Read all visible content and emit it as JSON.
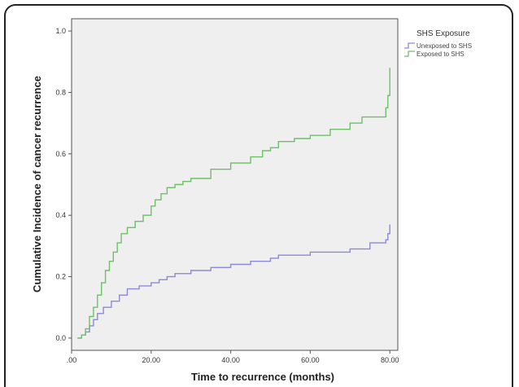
{
  "chart_data": {
    "type": "line",
    "step": true,
    "xlabel": "Time to recurrence (months)",
    "ylabel": "Cumulative Incidence of cancer recurrence",
    "xlim": [
      0,
      82
    ],
    "ylim": [
      -0.04,
      1.04
    ],
    "x_ticks": [
      0,
      20,
      40,
      60,
      80
    ],
    "x_tick_labels": [
      ".00",
      "20.00",
      "40.00",
      "60.00",
      "80.00"
    ],
    "y_ticks": [
      0.0,
      0.2,
      0.4,
      0.6,
      0.8,
      1.0
    ],
    "y_tick_labels": [
      "0.0",
      "0.2",
      "0.4",
      "0.6",
      "0.8",
      "1.0"
    ],
    "grid": false,
    "legend": {
      "title": "SHS Exposure",
      "position": "outside-right-top"
    },
    "series": [
      {
        "name": "Unexposed to SHS",
        "color": "#8c8ad6",
        "points": [
          [
            1.5,
            0.0
          ],
          [
            2.5,
            0.01
          ],
          [
            3.5,
            0.02
          ],
          [
            4.5,
            0.04
          ],
          [
            5.5,
            0.06
          ],
          [
            6.5,
            0.08
          ],
          [
            8,
            0.1
          ],
          [
            10,
            0.12
          ],
          [
            12,
            0.14
          ],
          [
            14,
            0.16
          ],
          [
            17,
            0.17
          ],
          [
            20,
            0.18
          ],
          [
            22,
            0.19
          ],
          [
            24,
            0.2
          ],
          [
            26,
            0.21
          ],
          [
            30,
            0.22
          ],
          [
            35,
            0.23
          ],
          [
            40,
            0.24
          ],
          [
            45,
            0.25
          ],
          [
            50,
            0.26
          ],
          [
            52,
            0.27
          ],
          [
            60,
            0.28
          ],
          [
            70,
            0.29
          ],
          [
            75,
            0.31
          ],
          [
            79,
            0.32
          ],
          [
            79.5,
            0.34
          ],
          [
            80,
            0.37
          ]
        ]
      },
      {
        "name": "Exposed to SHS",
        "color": "#6fbf6a",
        "points": [
          [
            1.5,
            0.0
          ],
          [
            2.5,
            0.01
          ],
          [
            3.5,
            0.03
          ],
          [
            4.5,
            0.07
          ],
          [
            5.5,
            0.1
          ],
          [
            6.5,
            0.14
          ],
          [
            7.5,
            0.18
          ],
          [
            8.5,
            0.22
          ],
          [
            9.5,
            0.25
          ],
          [
            10.5,
            0.28
          ],
          [
            11.5,
            0.31
          ],
          [
            12.5,
            0.34
          ],
          [
            14,
            0.36
          ],
          [
            16,
            0.38
          ],
          [
            18,
            0.4
          ],
          [
            20,
            0.43
          ],
          [
            21,
            0.45
          ],
          [
            22.5,
            0.47
          ],
          [
            24,
            0.49
          ],
          [
            26,
            0.5
          ],
          [
            28,
            0.51
          ],
          [
            30,
            0.52
          ],
          [
            35,
            0.55
          ],
          [
            40,
            0.57
          ],
          [
            45,
            0.59
          ],
          [
            48,
            0.61
          ],
          [
            50,
            0.62
          ],
          [
            52,
            0.64
          ],
          [
            56,
            0.65
          ],
          [
            60,
            0.66
          ],
          [
            65,
            0.68
          ],
          [
            70,
            0.7
          ],
          [
            73,
            0.72
          ],
          [
            79,
            0.75
          ],
          [
            79.5,
            0.79
          ],
          [
            80,
            0.88
          ]
        ]
      }
    ]
  }
}
